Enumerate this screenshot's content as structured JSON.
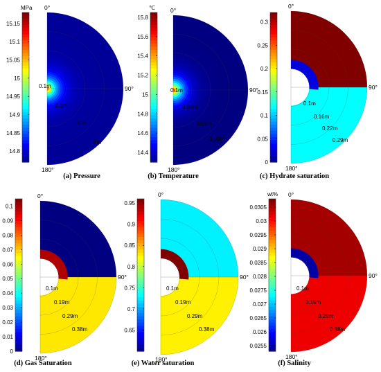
{
  "chart_data": [
    {
      "type": "heatmap",
      "panel": "a",
      "caption": "(a) Pressure",
      "unit": "MPa",
      "colorbar_ticks": [
        "15.15",
        "15.1",
        "15.05",
        "15",
        "14.95",
        "14.9",
        "14.85",
        "14.8"
      ],
      "colorbar_tick_values": [
        15.15,
        15.1,
        15.05,
        15.0,
        14.95,
        14.9,
        14.85,
        14.8
      ],
      "colorbar_range": [
        14.77,
        15.18
      ],
      "angle_labels": [
        "0°",
        "90°",
        "180°"
      ],
      "radius_labels": [
        "0.1m",
        "2.1m",
        "4m",
        "6m"
      ],
      "field": "radial-decay",
      "center_value": 15.15,
      "far_value": 14.78
    },
    {
      "type": "heatmap",
      "panel": "b",
      "caption": "(b) Temperature",
      "unit": "℃",
      "colorbar_ticks": [
        "15.8",
        "15.6",
        "15.4",
        "15.2",
        "15",
        "14.8",
        "14.6",
        "14.4"
      ],
      "colorbar_tick_values": [
        15.8,
        15.6,
        15.4,
        15.2,
        15.0,
        14.8,
        14.6,
        14.4
      ],
      "colorbar_range": [
        14.3,
        15.85
      ],
      "angle_labels": [
        "0°",
        "90°",
        "180°"
      ],
      "radius_labels": [
        "0.1m",
        "0.39m",
        "0.69m",
        "1.00m"
      ],
      "field": "radial-decay",
      "center_value": 15.85,
      "far_value": 14.3
    },
    {
      "type": "heatmap",
      "panel": "c",
      "caption": "(c) Hydrate saturation",
      "unit": "",
      "colorbar_ticks": [
        "0.3",
        "0.25",
        "0.2",
        "0.15",
        "0.1",
        "0.05",
        "0"
      ],
      "colorbar_tick_values": [
        0.3,
        0.25,
        0.2,
        0.15,
        0.1,
        0.05,
        0
      ],
      "colorbar_range": [
        0,
        0.32
      ],
      "angle_labels": [
        "0°",
        "90°",
        "180°"
      ],
      "radius_labels": [
        "0.1m",
        "0.16m",
        "0.22m",
        "0.29m"
      ],
      "field": "split",
      "top_value": 0.32,
      "bottom_value": 0.12,
      "ring_value": 0.03
    },
    {
      "type": "heatmap",
      "panel": "d",
      "caption": "(d) Gas Saturation",
      "unit": "",
      "colorbar_ticks": [
        "0.1",
        "0.09",
        "0.08",
        "0.07",
        "0.06",
        "0.05",
        "0.04",
        "0.03",
        "0.02",
        "0.01",
        "0"
      ],
      "colorbar_tick_values": [
        0.1,
        0.09,
        0.08,
        0.07,
        0.06,
        0.05,
        0.04,
        0.03,
        0.02,
        0.01,
        0
      ],
      "colorbar_range": [
        0,
        0.105
      ],
      "angle_labels": [
        "0°",
        "90°",
        "180°"
      ],
      "radius_labels": [
        "0.1m",
        "0.19m",
        "0.29m",
        "0.38m"
      ],
      "field": "split",
      "top_value": 0.0,
      "bottom_value": 0.068,
      "ring_value": 0.1
    },
    {
      "type": "heatmap",
      "panel": "e",
      "caption": "(e) Water saturation",
      "unit": "",
      "colorbar_ticks": [
        "0.95",
        "0.9",
        "0.85",
        "0.8",
        "0.75",
        "0.7",
        "0.65"
      ],
      "colorbar_tick_values": [
        0.95,
        0.9,
        0.85,
        0.8,
        0.75,
        0.7,
        0.65
      ],
      "colorbar_range": [
        0.6,
        0.96
      ],
      "angle_labels": [
        "0°",
        "90°",
        "180°"
      ],
      "radius_labels": [
        "0.1m",
        "0.19m",
        "0.29m",
        "0.38m"
      ],
      "field": "split",
      "top_value": 0.73,
      "bottom_value": 0.83,
      "ring_value": 0.96
    },
    {
      "type": "heatmap",
      "panel": "f",
      "caption": "(f) Salinity",
      "unit": "wt%",
      "colorbar_ticks": [
        "0.0305",
        "0.03",
        "0.0295",
        "0.029",
        "0.0285",
        "0.028",
        "0.0275",
        "0.027",
        "0.0265",
        "0.026",
        "0.0255"
      ],
      "colorbar_tick_values": [
        0.0305,
        0.03,
        0.0295,
        0.029,
        0.0285,
        0.028,
        0.0275,
        0.027,
        0.0265,
        0.026,
        0.0255
      ],
      "colorbar_range": [
        0.0253,
        0.0308
      ],
      "angle_labels": [
        "0°",
        "90°",
        "180°"
      ],
      "radius_labels": [
        "0.1m",
        "0.19m",
        "0.29m",
        "0.38m"
      ],
      "field": "split",
      "top_value": 0.0306,
      "bottom_value": 0.0302,
      "ring_value": 0.0255
    }
  ]
}
